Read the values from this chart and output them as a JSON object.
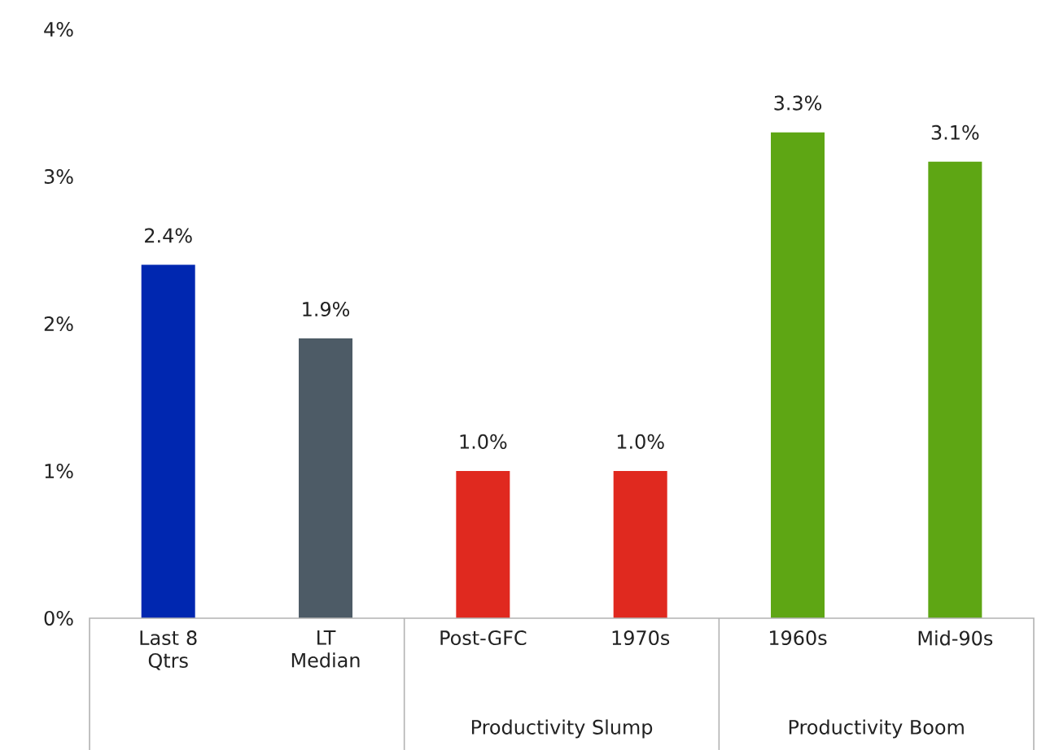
{
  "chart_data": {
    "type": "bar",
    "categories": [
      "Last 8 Qtrs",
      "LT Median",
      "Post-GFC",
      "1970s",
      "1960s",
      "Mid-90s"
    ],
    "values": [
      2.4,
      1.9,
      1.0,
      1.0,
      3.3,
      3.1
    ],
    "colors": [
      "#0027b0",
      "#4d5b66",
      "#e0291f",
      "#e0291f",
      "#5ea614",
      "#5ea614"
    ],
    "value_labels": [
      "2.4%",
      "1.9%",
      "1.0%",
      "1.0%",
      "3.3%",
      "3.1%"
    ],
    "ylim": [
      0,
      4
    ],
    "yticks": [
      {
        "value": 0,
        "label": "0%"
      },
      {
        "value": 1,
        "label": "1%"
      },
      {
        "value": 2,
        "label": "2%"
      },
      {
        "value": 3,
        "label": "3%"
      },
      {
        "value": 4,
        "label": "4%"
      }
    ],
    "annotations": [
      "Productivity Slump",
      "Productivity Boom"
    ],
    "grid": false
  }
}
